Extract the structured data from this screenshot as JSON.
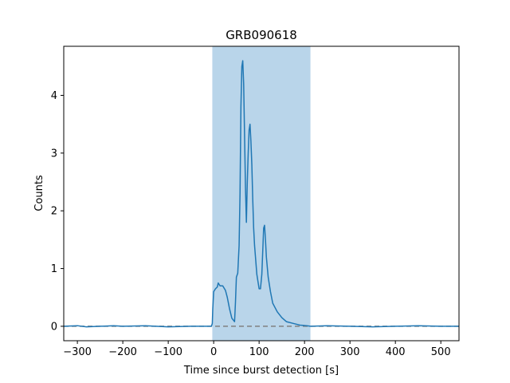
{
  "chart_data": {
    "type": "line",
    "title": "GRB090618",
    "xlabel": "Time since burst detection [s]",
    "ylabel": "Counts",
    "xlim": [
      -330,
      540
    ],
    "ylim": [
      -0.25,
      4.85
    ],
    "x_ticks": [
      -300,
      -200,
      -100,
      0,
      100,
      200,
      300,
      400,
      500
    ],
    "y_ticks": [
      0,
      1,
      2,
      3,
      4
    ],
    "grid": false,
    "highlight_span": {
      "x0": -3,
      "x1": 213,
      "color": "#b9d5ea"
    },
    "baseline": {
      "y": 0,
      "color": "#808080",
      "style": "dashed"
    },
    "series": [
      {
        "color": "#1f77b4",
        "points": [
          [
            -330,
            0.0
          ],
          [
            -300,
            0.01
          ],
          [
            -280,
            -0.01
          ],
          [
            -250,
            0.0
          ],
          [
            -220,
            0.01
          ],
          [
            -200,
            0.0
          ],
          [
            -150,
            0.01
          ],
          [
            -100,
            -0.01
          ],
          [
            -50,
            0.0
          ],
          [
            -5,
            0.0
          ],
          [
            -3,
            0.05
          ],
          [
            -2,
            0.3
          ],
          [
            0,
            0.6
          ],
          [
            4,
            0.65
          ],
          [
            8,
            0.68
          ],
          [
            10,
            0.75
          ],
          [
            14,
            0.7
          ],
          [
            20,
            0.7
          ],
          [
            26,
            0.62
          ],
          [
            30,
            0.5
          ],
          [
            35,
            0.3
          ],
          [
            40,
            0.14
          ],
          [
            44,
            0.1
          ],
          [
            46,
            0.08
          ],
          [
            48,
            0.42
          ],
          [
            50,
            0.85
          ],
          [
            53,
            0.92
          ],
          [
            56,
            1.4
          ],
          [
            58,
            2.3
          ],
          [
            60,
            3.8
          ],
          [
            62,
            4.5
          ],
          [
            64,
            4.6
          ],
          [
            66,
            4.2
          ],
          [
            68,
            3.3
          ],
          [
            70,
            2.4
          ],
          [
            72,
            1.8
          ],
          [
            74,
            2.5
          ],
          [
            76,
            3.0
          ],
          [
            78,
            3.4
          ],
          [
            80,
            3.5
          ],
          [
            82,
            3.2
          ],
          [
            84,
            2.8
          ],
          [
            86,
            2.2
          ],
          [
            88,
            1.7
          ],
          [
            90,
            1.4
          ],
          [
            92,
            1.2
          ],
          [
            95,
            0.9
          ],
          [
            98,
            0.75
          ],
          [
            100,
            0.65
          ],
          [
            103,
            0.65
          ],
          [
            106,
            0.9
          ],
          [
            108,
            1.3
          ],
          [
            110,
            1.7
          ],
          [
            112,
            1.75
          ],
          [
            114,
            1.5
          ],
          [
            116,
            1.2
          ],
          [
            120,
            0.85
          ],
          [
            125,
            0.6
          ],
          [
            130,
            0.4
          ],
          [
            140,
            0.25
          ],
          [
            150,
            0.15
          ],
          [
            160,
            0.08
          ],
          [
            175,
            0.05
          ],
          [
            190,
            0.02
          ],
          [
            205,
            0.01
          ],
          [
            213,
            0.0
          ],
          [
            250,
            0.01
          ],
          [
            300,
            0.0
          ],
          [
            350,
            -0.01
          ],
          [
            400,
            0.0
          ],
          [
            450,
            0.01
          ],
          [
            500,
            0.0
          ],
          [
            540,
            0.0
          ]
        ]
      }
    ]
  }
}
